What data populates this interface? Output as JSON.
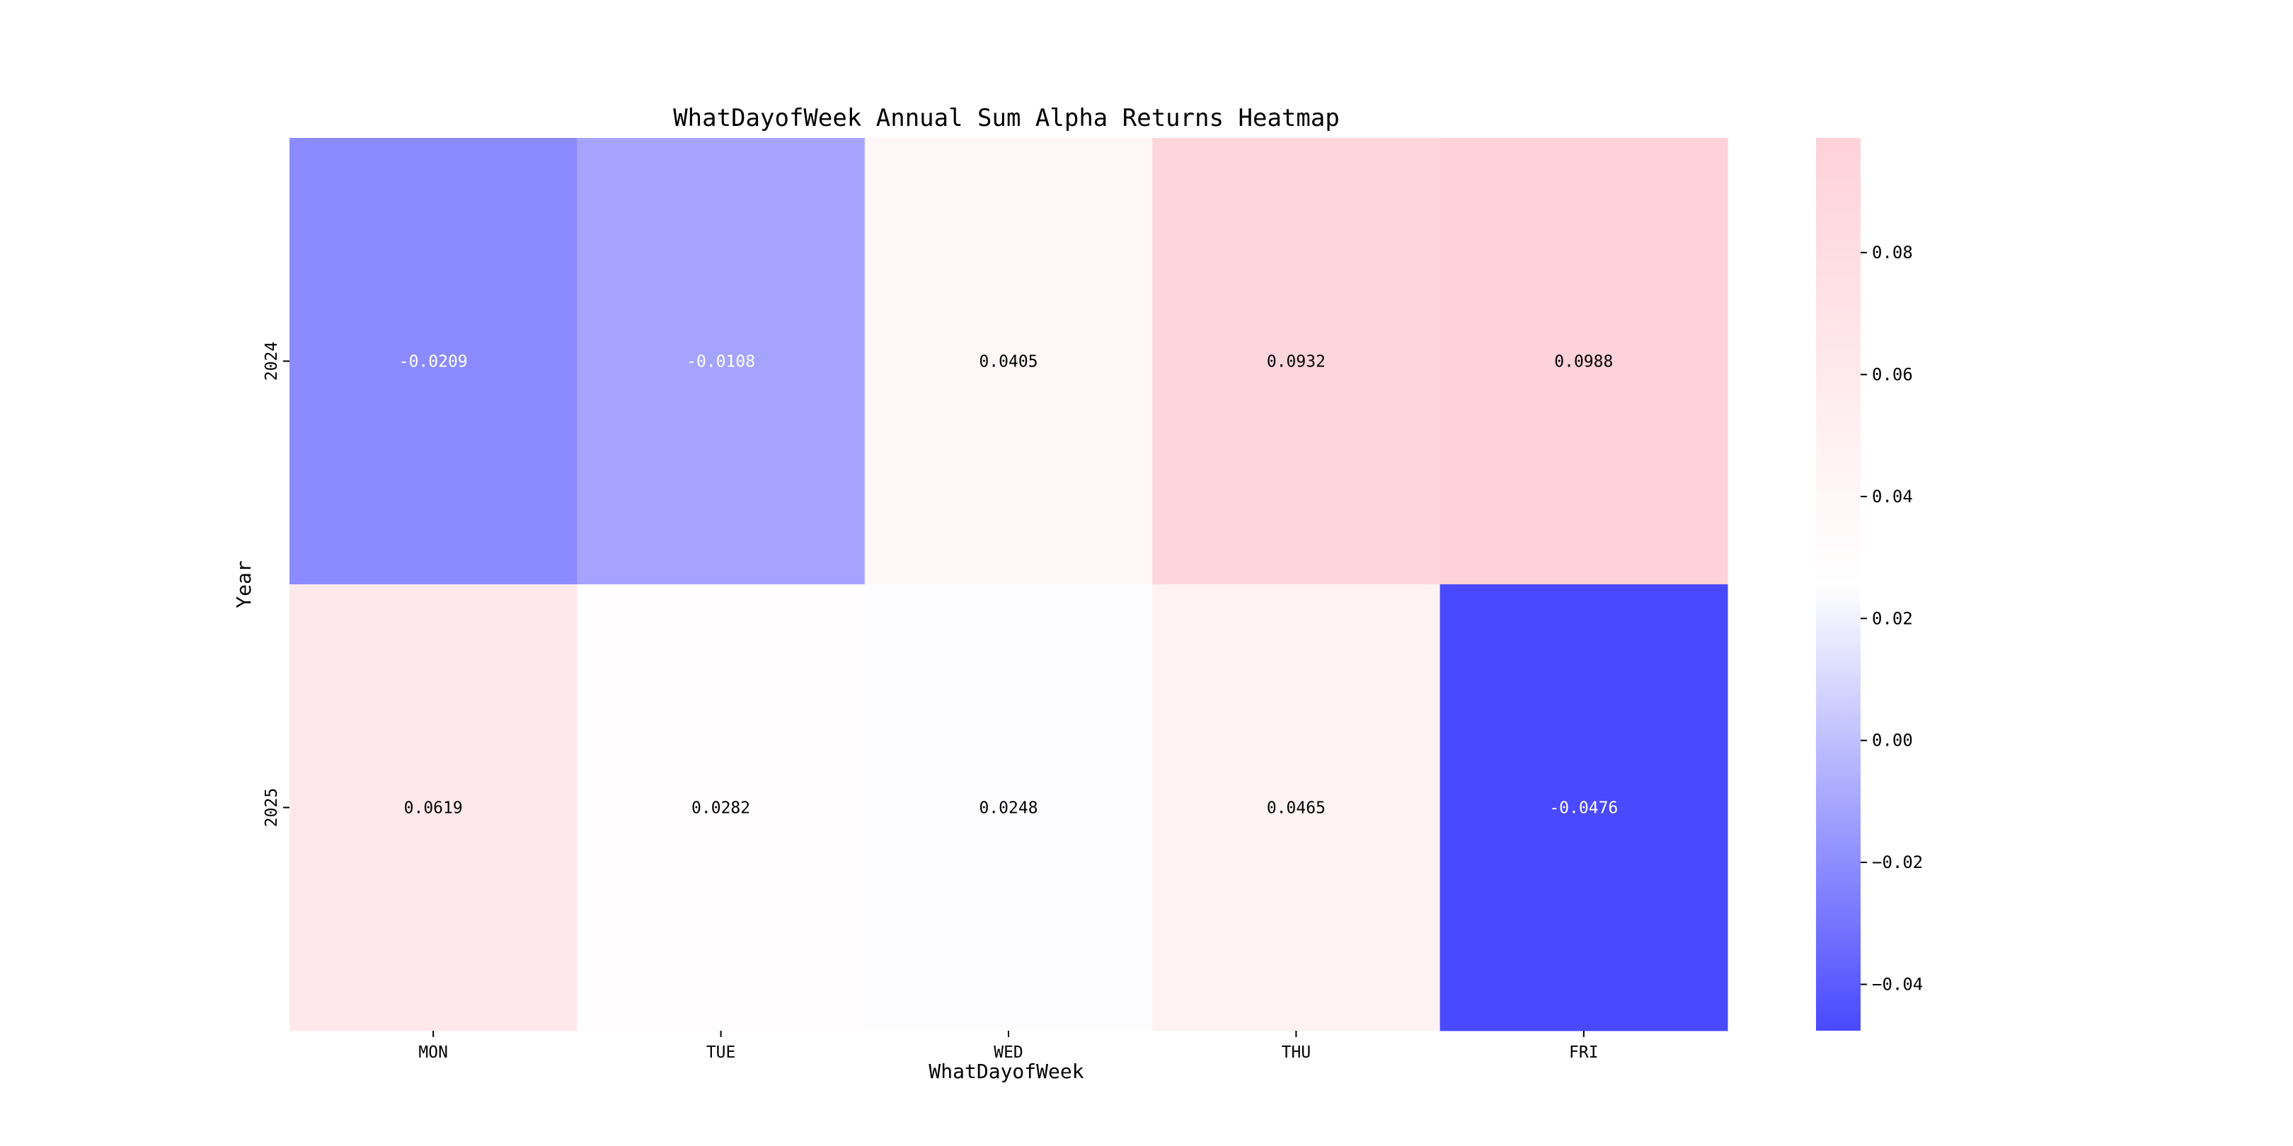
{
  "chart_data": {
    "type": "heatmap",
    "title": "WhatDayofWeek Annual Sum Alpha Returns Heatmap",
    "xlabel": "WhatDayofWeek",
    "ylabel": "Year",
    "x_categories": [
      "MON",
      "TUE",
      "WED",
      "THU",
      "FRI"
    ],
    "y_categories": [
      "2024",
      "2025"
    ],
    "values": [
      [
        -0.0209,
        -0.0108,
        0.0405,
        0.0932,
        0.0988
      ],
      [
        0.0619,
        0.0282,
        0.0248,
        0.0465,
        -0.0476
      ]
    ],
    "value_labels": [
      [
        "-0.0209",
        "-0.0108",
        "0.0405",
        "0.0932",
        "0.0988"
      ],
      [
        "0.0619",
        "0.0282",
        "0.0248",
        "0.0465",
        "-0.0476"
      ]
    ],
    "colorbar": {
      "min": -0.0476,
      "center": 0.0256,
      "max": 0.0988,
      "ticks": [
        0.08,
        0.06,
        0.04,
        0.02,
        0.0,
        -0.02,
        -0.04
      ],
      "tick_labels": [
        "0.08",
        "0.06",
        "0.04",
        "0.02",
        "0.00",
        "−0.02",
        "−0.04"
      ],
      "colors": {
        "low": "#4949ff",
        "mid": "#ffffff",
        "high": "#ffd1d9"
      }
    },
    "grid": false
  }
}
